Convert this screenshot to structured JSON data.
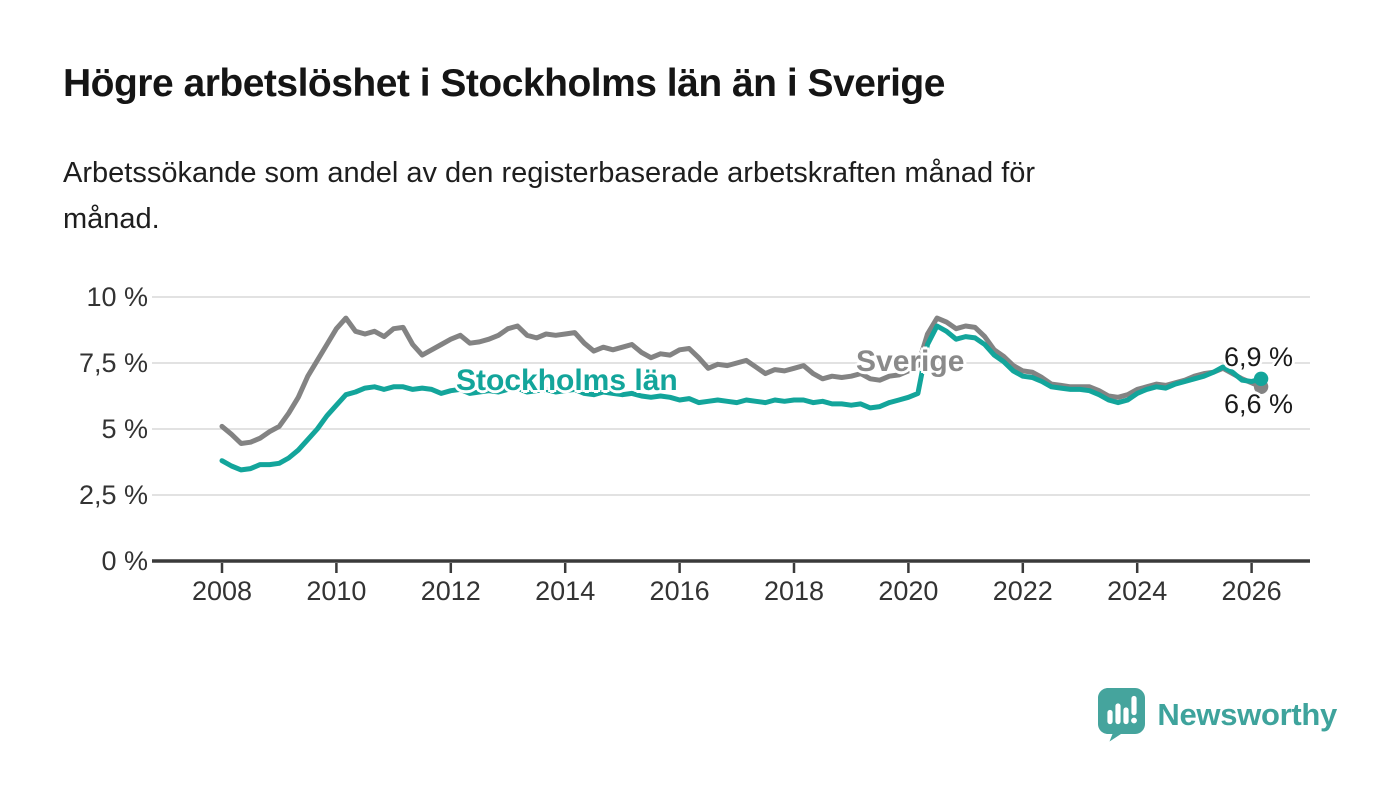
{
  "header": {
    "title": "Högre arbetslöshet i Stockholms län än i Sverige",
    "subtitle": "Arbetssökande som andel av den registerbaserade arbetskraften månad för månad."
  },
  "chart_data": {
    "type": "line",
    "title": "Högre arbetslöshet i Stockholms län än i Sverige",
    "subtitle": "Arbetssökande som andel av den registerbaserade arbetskraften månad för månad.",
    "x_start": 2008,
    "x_step": 0.166667,
    "xlim": [
      2006.8,
      2027
    ],
    "ylim": [
      0,
      10
    ],
    "grid": "horizontal",
    "legend_position": "inline-labels",
    "grid_color": "#d9d9d9",
    "axis_color": "#3a3a3a",
    "y_ticks": [
      {
        "v": 0,
        "label": "0 %"
      },
      {
        "v": 2.5,
        "label": "2,5 %"
      },
      {
        "v": 5,
        "label": "5 %"
      },
      {
        "v": 7.5,
        "label": "7,5 %"
      },
      {
        "v": 10,
        "label": "10 %"
      }
    ],
    "x_ticks": [
      {
        "v": 2008,
        "label": "2008"
      },
      {
        "v": 2010,
        "label": "2010"
      },
      {
        "v": 2012,
        "label": "2012"
      },
      {
        "v": 2014,
        "label": "2014"
      },
      {
        "v": 2016,
        "label": "2016"
      },
      {
        "v": 2018,
        "label": "2018"
      },
      {
        "v": 2020,
        "label": "2020"
      },
      {
        "v": 2022,
        "label": "2022"
      },
      {
        "v": 2024,
        "label": "2024"
      },
      {
        "v": 2026,
        "label": "2026"
      }
    ],
    "series": [
      {
        "name": "Sverige",
        "color": "#838383",
        "end_label": "6,6 %",
        "end_value": 6.6,
        "values": [
          5.1,
          4.8,
          4.45,
          4.5,
          4.65,
          4.9,
          5.1,
          5.6,
          6.2,
          7.0,
          7.6,
          8.2,
          8.8,
          9.2,
          8.7,
          8.6,
          8.7,
          8.5,
          8.8,
          8.85,
          8.2,
          7.8,
          8.0,
          8.2,
          8.4,
          8.55,
          8.25,
          8.3,
          8.4,
          8.55,
          8.8,
          8.9,
          8.55,
          8.45,
          8.6,
          8.55,
          8.6,
          8.65,
          8.25,
          7.95,
          8.1,
          8.0,
          8.1,
          8.2,
          7.9,
          7.7,
          7.85,
          7.8,
          8.0,
          8.05,
          7.7,
          7.3,
          7.45,
          7.4,
          7.5,
          7.6,
          7.35,
          7.1,
          7.25,
          7.2,
          7.3,
          7.4,
          7.1,
          6.9,
          7.0,
          6.95,
          7.0,
          7.1,
          6.9,
          6.85,
          7.0,
          7.05,
          7.2,
          7.4,
          8.6,
          9.2,
          9.05,
          8.8,
          8.9,
          8.85,
          8.5,
          8.0,
          7.75,
          7.4,
          7.2,
          7.15,
          6.95,
          6.7,
          6.65,
          6.6,
          6.6,
          6.6,
          6.45,
          6.25,
          6.2,
          6.3,
          6.5,
          6.6,
          6.7,
          6.65,
          6.75,
          6.85,
          7.0,
          7.1,
          7.15,
          7.3,
          7.1,
          6.9,
          6.75,
          6.6
        ]
      },
      {
        "name": "Stockholms län",
        "color": "#13a59b",
        "end_label": "6,9 %",
        "end_value": 6.9,
        "values": [
          3.8,
          3.6,
          3.45,
          3.5,
          3.65,
          3.65,
          3.7,
          3.9,
          4.2,
          4.6,
          5.0,
          5.5,
          5.9,
          6.3,
          6.4,
          6.55,
          6.6,
          6.5,
          6.6,
          6.6,
          6.5,
          6.55,
          6.5,
          6.35,
          6.45,
          6.5,
          6.35,
          6.4,
          6.45,
          6.4,
          6.5,
          6.55,
          6.4,
          6.45,
          6.5,
          6.4,
          6.45,
          6.5,
          6.35,
          6.3,
          6.4,
          6.35,
          6.3,
          6.35,
          6.25,
          6.2,
          6.25,
          6.2,
          6.1,
          6.15,
          6.0,
          6.05,
          6.1,
          6.05,
          6.0,
          6.1,
          6.05,
          6.0,
          6.1,
          6.05,
          6.1,
          6.1,
          6.0,
          6.05,
          5.95,
          5.95,
          5.9,
          5.95,
          5.8,
          5.85,
          6.0,
          6.1,
          6.2,
          6.35,
          8.2,
          8.9,
          8.7,
          8.4,
          8.5,
          8.45,
          8.2,
          7.8,
          7.55,
          7.2,
          7.0,
          6.95,
          6.8,
          6.6,
          6.55,
          6.5,
          6.5,
          6.45,
          6.3,
          6.1,
          6.0,
          6.1,
          6.35,
          6.5,
          6.6,
          6.55,
          6.7,
          6.8,
          6.9,
          7.0,
          7.15,
          7.35,
          7.15,
          6.85,
          6.8,
          6.9
        ]
      }
    ]
  },
  "footer": {
    "brand": "Newsworthy",
    "brand_color": "#3ea39c"
  }
}
